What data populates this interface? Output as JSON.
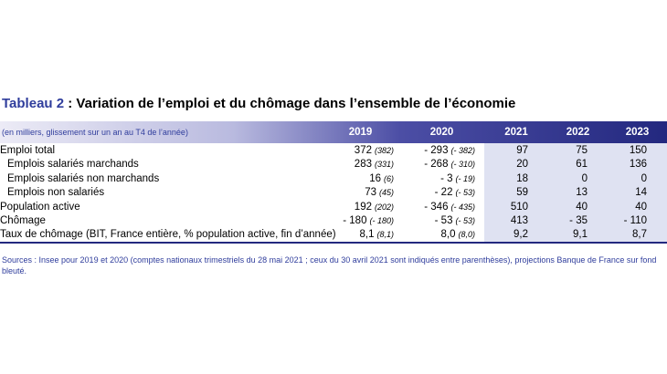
{
  "title": {
    "label": "Tableau 2",
    "text": " : Variation de l’emploi et du chômage dans l’ensemble de l’économie"
  },
  "table": {
    "note": "(en milliers, glissement sur un an au T4 de l’année)",
    "columns": [
      "2019",
      "2020",
      "2021",
      "2022",
      "2023"
    ],
    "rows": [
      {
        "label": "Emploi total",
        "cells": [
          {
            "value": "372",
            "note": "(382)"
          },
          {
            "value": "- 293",
            "note": "(- 382)"
          },
          "97",
          "75",
          "150"
        ],
        "sub_rows": [
          {
            "label": "Emplois salariés marchands",
            "cells": [
              {
                "value": "283",
                "note": "(331)"
              },
              {
                "value": "- 268",
                "note": "(- 310)"
              },
              "20",
              "61",
              "136"
            ]
          },
          {
            "label": "Emplois salariés non marchands",
            "cells": [
              {
                "value": "16",
                "note": "(6)"
              },
              {
                "value": "- 3",
                "note": "(- 19)"
              },
              "18",
              "0",
              "0"
            ]
          },
          {
            "label": "Emplois non salariés",
            "cells": [
              {
                "value": "73",
                "note": "(45)"
              },
              {
                "value": "- 22",
                "note": "(- 53)"
              },
              "59",
              "13",
              "14"
            ]
          }
        ]
      },
      {
        "label": "Population active",
        "cells": [
          {
            "value": "192",
            "note": "(202)"
          },
          {
            "value": "- 346",
            "note": "(- 435)"
          },
          "510",
          "40",
          "40"
        ]
      },
      {
        "label": "Chômage",
        "cells": [
          {
            "value": "- 180",
            "note": "(- 180)"
          },
          {
            "value": "- 53",
            "note": "(- 53)"
          },
          "413",
          "- 35",
          "- 110"
        ]
      },
      {
        "label": "Taux de chômage (BIT, France entière, % population active, fin d’année)",
        "cells": [
          {
            "value": "8,1",
            "note": "(8,1)"
          },
          {
            "value": "8,0",
            "note": "(8,0)"
          },
          "9,2",
          "9,1",
          "8,7"
        ]
      }
    ]
  },
  "source": "Sources : Insee pour 2019 et 2020 (comptes nationaux trimestriels du 28 mai 2021 ; ceux du 30 avril 2021 sont indiqués entre parenthèses), projections Banque de France sur fond bleuté."
}
